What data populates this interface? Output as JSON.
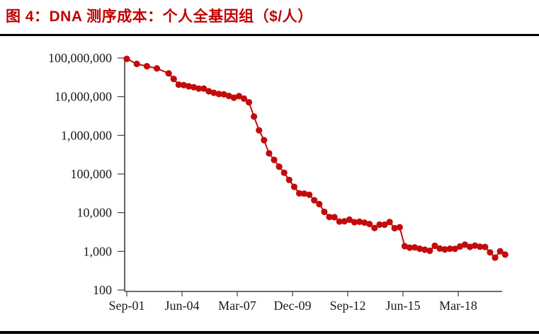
{
  "header": {
    "title": "图 4：DNA 测序成本：个人全基因组（$/人）",
    "title_color": "#C00000"
  },
  "chart_data": {
    "type": "line",
    "title": "图 4：DNA 测序成本：个人全基因组（$/人）",
    "xlabel": "",
    "ylabel": "",
    "y_scale": "log",
    "ylim": [
      100,
      100000000
    ],
    "xlim": [
      "Sep-01",
      "Jul-20"
    ],
    "grid": false,
    "legend_position": "none",
    "marker": "circle",
    "y_tick_values": [
      100000000,
      10000000,
      1000000,
      100000,
      10000,
      1000,
      100
    ],
    "y_tick_labels": [
      "100,000,000",
      "10,000,000",
      "1,000,000",
      "100,000",
      "10,000",
      "1,000",
      "100"
    ],
    "x_tick_labels": [
      "Sep-01",
      "Jun-04",
      "Mar-07",
      "Dec-09",
      "Sep-12",
      "Jun-15",
      "Mar-18"
    ],
    "series": [
      {
        "name": "DNA 测序成本：个人全基因组（$/人）",
        "color": "#C40B0B",
        "dates": [
          "Sep-01",
          "Mar-02",
          "Sep-02",
          "Mar-03",
          "Oct-03",
          "Jan-04",
          "Apr-04",
          "Jul-04",
          "Oct-04",
          "Jan-05",
          "Apr-05",
          "Jul-05",
          "Oct-05",
          "Jan-06",
          "Apr-06",
          "Jul-06",
          "Oct-06",
          "Jan-07",
          "Apr-07",
          "Jul-07",
          "Oct-07",
          "Jan-08",
          "Apr-08",
          "Jul-08",
          "Oct-08",
          "Jan-09",
          "Apr-09",
          "Jul-09",
          "Oct-09",
          "Jan-10",
          "Apr-10",
          "Jul-10",
          "Oct-10",
          "Jan-11",
          "Apr-11",
          "Jul-11",
          "Oct-11",
          "Jan-12",
          "Apr-12",
          "Jul-12",
          "Oct-12",
          "Jan-13",
          "Apr-13",
          "Jul-13",
          "Oct-13",
          "Jan-14",
          "Apr-14",
          "Jul-14",
          "Oct-14",
          "Jan-15",
          "Apr-15",
          "Jul-15",
          "Oct-15",
          "Jan-16",
          "Apr-16",
          "Jul-16",
          "Oct-16",
          "Jan-17",
          "Apr-17",
          "Jul-17",
          "Oct-17",
          "Jan-18",
          "Apr-18",
          "Jul-18",
          "Oct-18",
          "Jan-19",
          "Apr-19",
          "Jul-19",
          "Oct-19",
          "Jan-20",
          "Apr-20",
          "Jul-20"
        ],
        "values": [
          95263072,
          70175437,
          61448422,
          53751684,
          40157554,
          28780376,
          20442576,
          19934346,
          18519312,
          17534970,
          16159699,
          16180224,
          13801124,
          12585659,
          11732535,
          11455315,
          10474556,
          9408739,
          10314621,
          8927342,
          7147571,
          3063820,
          1352982,
          752080,
          342502,
          232735,
          154714,
          108065,
          70333,
          46774,
          31512,
          31125,
          29092,
          20963,
          16712,
          10497,
          7743,
          7666,
          5901,
          5985,
          6618,
          5671,
          5826,
          5550,
          5096,
          4008,
          4920,
          4905,
          5731,
          3970,
          4211,
          1363,
          1245,
          1271,
          1172,
          1103,
          1038,
          1391,
          1181,
          1121,
          1173,
          1161,
          1333,
          1486,
          1308,
          1411,
          1316,
          1302,
          942,
          689,
          1006,
          826
        ]
      }
    ]
  }
}
